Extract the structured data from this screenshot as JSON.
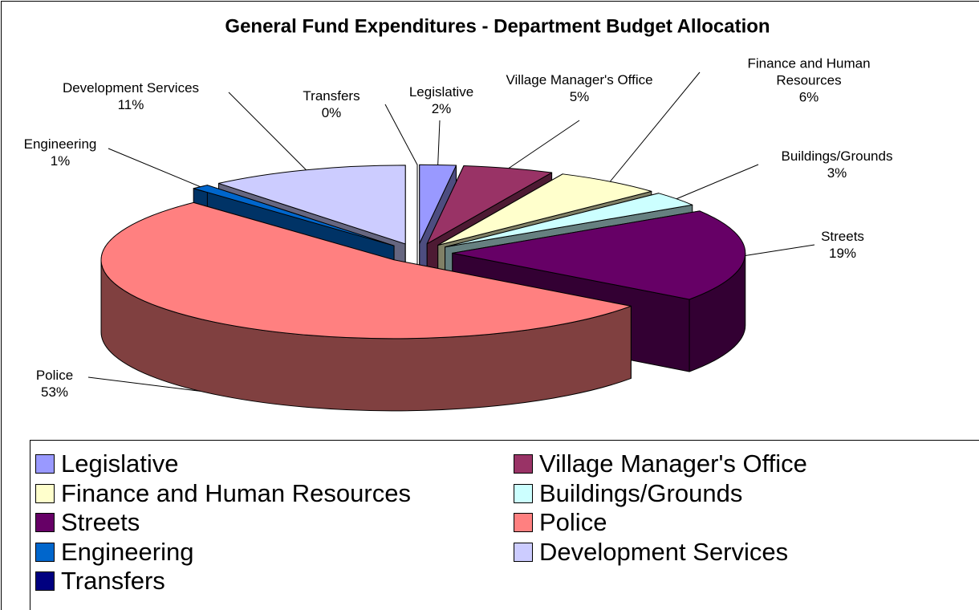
{
  "chart_data": {
    "type": "pie3d",
    "title": "General Fund Expenditures - Department Budget Allocation",
    "categories": [
      "Legislative",
      "Village Manager's Office",
      "Finance and Human Resources",
      "Buildings/Grounds",
      "Streets",
      "Police",
      "Engineering",
      "Development Services",
      "Transfers"
    ],
    "values": [
      2,
      5,
      6,
      3,
      19,
      53,
      1,
      11,
      0
    ],
    "value_labels": [
      "2%",
      "5%",
      "6%",
      "3%",
      "19%",
      "53%",
      "1%",
      "11%",
      "0%"
    ],
    "colors": [
      "#9999ff",
      "#993366",
      "#ffffcc",
      "#ccffff",
      "#660066",
      "#ff8080",
      "#0066cc",
      "#ccccff",
      "#000080"
    ],
    "legend": "bottom"
  }
}
